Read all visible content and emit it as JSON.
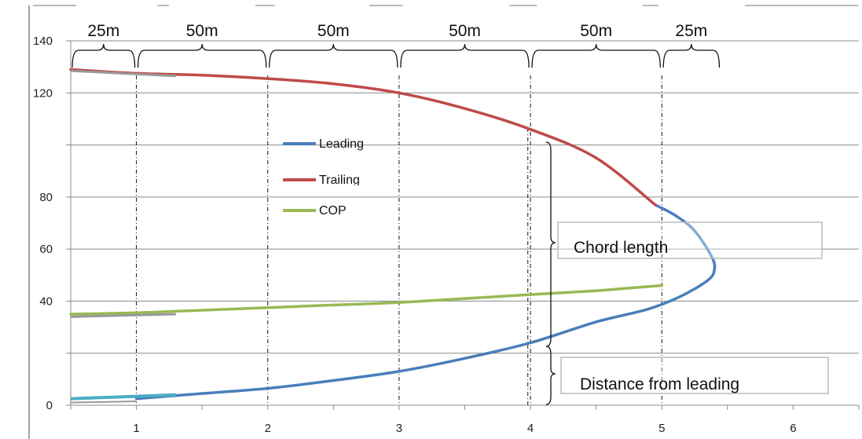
{
  "chart_data": {
    "type": "line",
    "x_ticks": [
      "1",
      "2",
      "3",
      "4",
      "5",
      "6"
    ],
    "y_ticks": [
      "0",
      "40",
      "60",
      "80",
      "120",
      "140"
    ],
    "xlim": [
      0.5,
      6.5
    ],
    "ylim": [
      0,
      140
    ],
    "grid": true,
    "legend_placement": "center",
    "segment_labels": [
      "25m",
      "50m",
      "50m",
      "50m",
      "50m",
      "25m"
    ],
    "segment_bounds": [
      0.5,
      1.0,
      2.0,
      3.0,
      4.0,
      5.0,
      5.45
    ],
    "station_lines_x": [
      1,
      2,
      3,
      4,
      5
    ],
    "annotations": [
      "Chord length",
      "Distance from leading"
    ],
    "series": [
      {
        "name": "Leading",
        "color": "#4a7ebb",
        "points": [
          [
            1.0,
            2.5
          ],
          [
            1.5,
            4.5
          ],
          [
            2.0,
            6.5
          ],
          [
            2.5,
            9.5
          ],
          [
            3.0,
            13.0
          ],
          [
            3.5,
            18.0
          ],
          [
            4.0,
            24.0
          ],
          [
            4.5,
            32.0
          ],
          [
            4.9,
            37.0
          ],
          [
            5.15,
            42.0
          ],
          [
            5.35,
            48.0
          ],
          [
            5.4,
            52.0
          ],
          [
            5.38,
            57.0
          ],
          [
            5.25,
            67.0
          ],
          [
            5.1,
            73.0
          ],
          [
            4.95,
            77.0
          ]
        ]
      },
      {
        "name": "Trailing",
        "color": "#be4b48",
        "points": [
          [
            0.5,
            129.0
          ],
          [
            1.0,
            127.5
          ],
          [
            1.5,
            126.8
          ],
          [
            2.0,
            125.5
          ],
          [
            2.5,
            123.5
          ],
          [
            3.0,
            120.0
          ],
          [
            3.5,
            114.0
          ],
          [
            4.0,
            106.0
          ],
          [
            4.5,
            95.0
          ],
          [
            4.95,
            77.0
          ]
        ]
      },
      {
        "name": "COP",
        "color": "#98b954",
        "points": [
          [
            0.5,
            35.0
          ],
          [
            1.0,
            35.5
          ],
          [
            1.5,
            36.5
          ],
          [
            2.0,
            37.5
          ],
          [
            2.5,
            38.5
          ],
          [
            3.0,
            39.5
          ],
          [
            3.5,
            41.0
          ],
          [
            4.0,
            42.5
          ],
          [
            4.5,
            44.0
          ],
          [
            5.0,
            46.0
          ]
        ]
      }
    ]
  }
}
